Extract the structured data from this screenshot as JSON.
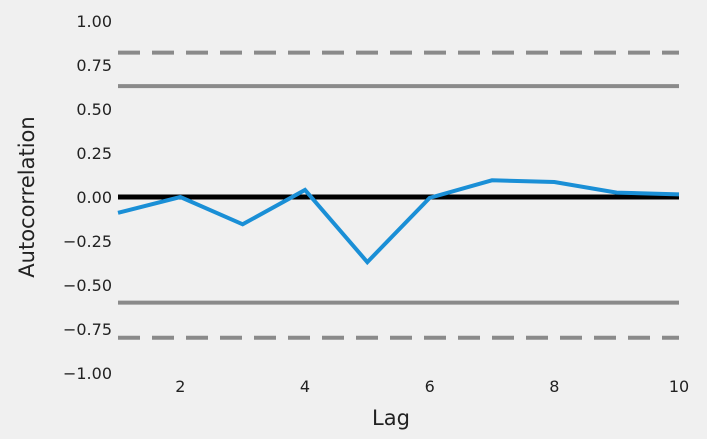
{
  "chart_data": {
    "type": "line",
    "title": "",
    "xlabel": "Lag",
    "ylabel": "Autocorrelation",
    "xlim": [
      1,
      10
    ],
    "ylim": [
      -1.0,
      1.0
    ],
    "x_ticks": [
      2,
      4,
      6,
      8,
      10
    ],
    "y_ticks": [
      -1.0,
      -0.75,
      -0.5,
      -0.25,
      0.0,
      0.25,
      0.5,
      0.75,
      1.0
    ],
    "y_tick_labels": [
      "−1.00",
      "−0.75",
      "−0.50",
      "−0.25",
      "0.00",
      "0.25",
      "0.50",
      "0.75",
      "1.00"
    ],
    "grid": false,
    "series": [
      {
        "x": [
          1,
          2,
          3,
          4,
          5,
          6,
          7,
          8,
          9,
          10
        ],
        "values": [
          -0.09,
          0.0,
          -0.155,
          0.04,
          -0.37,
          -0.005,
          0.095,
          0.085,
          0.025,
          0.015
        ],
        "color": "#1a8fd6"
      }
    ],
    "reference_lines": [
      {
        "y": 0.0,
        "style": "solid",
        "color": "#000000"
      },
      {
        "y": 0.63,
        "style": "solid",
        "color": "#8a8a8a"
      },
      {
        "y": -0.6,
        "style": "solid",
        "color": "#8a8a8a"
      },
      {
        "y": 0.82,
        "style": "dashed",
        "color": "#8a8a8a"
      },
      {
        "y": -0.8,
        "style": "dashed",
        "color": "#8a8a8a"
      }
    ]
  }
}
